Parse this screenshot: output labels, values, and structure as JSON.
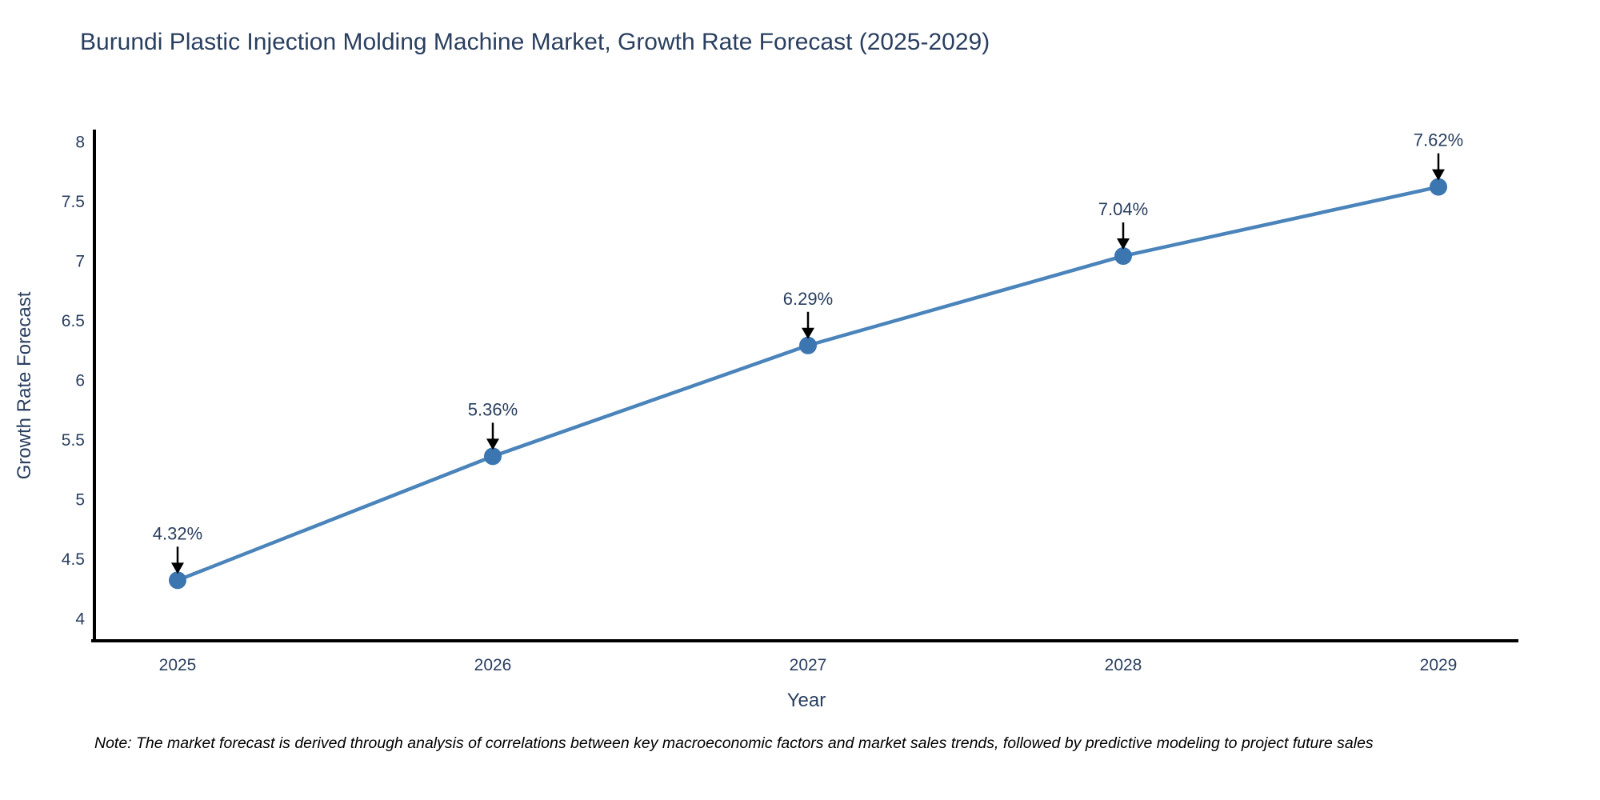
{
  "page": {
    "background": "#ffffff"
  },
  "chart_data": {
    "type": "line",
    "title": "Burundi Plastic Injection Molding Machine Market, Growth Rate Forecast (2025-2029)",
    "xlabel": "Year",
    "ylabel": "Growth Rate Forecast",
    "x": [
      2025,
      2026,
      2027,
      2028,
      2029
    ],
    "series": [
      {
        "name": "Growth Rate Forecast",
        "values": [
          4.32,
          5.36,
          6.29,
          7.04,
          7.62
        ]
      }
    ],
    "point_labels": [
      "4.32%",
      "5.36%",
      "6.29%",
      "7.04%",
      "7.62%"
    ],
    "xticks": [
      "2025",
      "2026",
      "2027",
      "2028",
      "2029"
    ],
    "yticks": [
      4,
      4.5,
      5,
      5.5,
      6,
      6.5,
      7,
      7.5,
      8
    ],
    "ytick_labels": [
      "4",
      "4.5",
      "5",
      "5.5",
      "6",
      "6.5",
      "7",
      "7.5",
      "8"
    ],
    "ylim": [
      4,
      8
    ],
    "grid": false,
    "legend_position": "none",
    "line_color": "#4a84ba",
    "marker_color": "#3b76b1",
    "axis_color": "#000000",
    "text_color": "#2a3f5f",
    "annotation_arrow_color": "#000000",
    "note": "Note: The market forecast is derived through analysis of correlations between key macroeconomic factors and market sales trends, followed by predictive modeling to project future sales"
  }
}
